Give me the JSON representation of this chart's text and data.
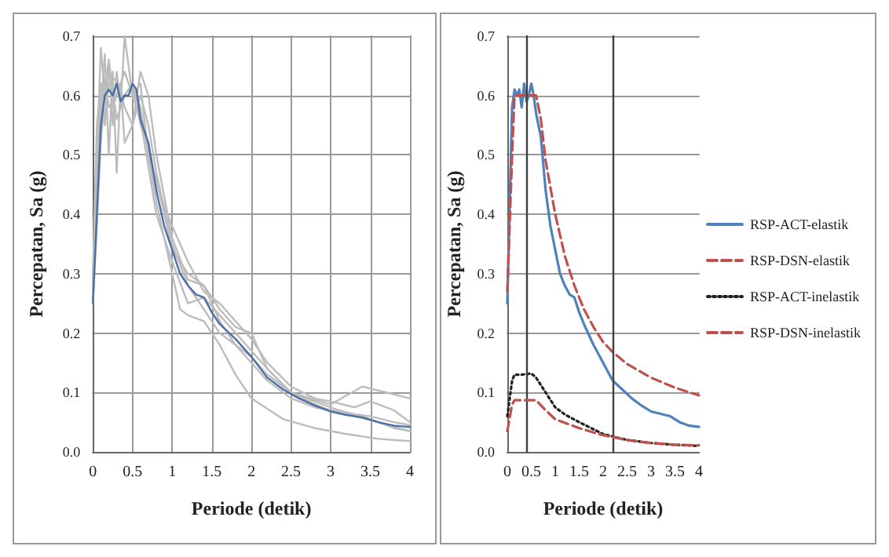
{
  "chart_data": [
    {
      "type": "line",
      "xlabel": "Periode (detik)",
      "ylabel": "Percepatan, Sa (g)",
      "xlim": [
        0,
        4
      ],
      "xticks": [
        0,
        0.5,
        1,
        1.5,
        2,
        2.5,
        3,
        3.5,
        4
      ],
      "ylim": [
        0,
        0.7
      ],
      "yticks": [
        {
          "value": 0,
          "label": "0.0"
        },
        {
          "value": 0.1,
          "label": "0.1"
        },
        {
          "value": 0.2,
          "label": "0.2"
        },
        {
          "value": 0.3,
          "label": "0.3"
        },
        {
          "value": 0.4,
          "label": "0.4"
        },
        {
          "value": 0.5,
          "label": "0.5"
        },
        {
          "value": 0.6,
          "label": "0.6"
        },
        {
          "value": 0.7,
          "label": "0.7"
        }
      ],
      "grid": true,
      "legend": false,
      "marker": "none",
      "line_style": "solid",
      "series": [
        {
          "color": "#bcbcbc",
          "x": [
            0,
            0.05,
            0.1,
            0.15,
            0.2,
            0.25,
            0.3,
            0.35,
            0.4,
            0.5,
            0.6,
            0.7,
            0.8,
            1.0,
            1.1,
            1.2,
            1.4,
            1.6,
            1.8,
            2.0,
            2.4,
            2.8,
            3.2,
            3.6,
            4.0
          ],
          "values": [
            0.27,
            0.5,
            0.68,
            0.6,
            0.66,
            0.55,
            0.64,
            0.58,
            0.7,
            0.6,
            0.62,
            0.5,
            0.42,
            0.3,
            0.24,
            0.23,
            0.22,
            0.18,
            0.13,
            0.09,
            0.055,
            0.04,
            0.03,
            0.022,
            0.018
          ]
        },
        {
          "color": "#bcbcbc",
          "x": [
            0,
            0.05,
            0.1,
            0.15,
            0.2,
            0.25,
            0.3,
            0.35,
            0.4,
            0.5,
            0.6,
            0.7,
            0.8,
            1.0,
            1.2,
            1.4,
            1.6,
            1.8,
            2.0,
            2.2,
            2.5,
            3.0,
            3.4,
            3.7,
            4.0
          ],
          "values": [
            0.26,
            0.45,
            0.58,
            0.67,
            0.5,
            0.64,
            0.47,
            0.62,
            0.52,
            0.55,
            0.64,
            0.6,
            0.5,
            0.36,
            0.29,
            0.28,
            0.24,
            0.21,
            0.2,
            0.14,
            0.1,
            0.08,
            0.11,
            0.1,
            0.09
          ]
        },
        {
          "color": "#bcbcbc",
          "x": [
            0,
            0.05,
            0.1,
            0.15,
            0.2,
            0.25,
            0.3,
            0.4,
            0.5,
            0.6,
            0.7,
            0.8,
            1.0,
            1.2,
            1.4,
            1.6,
            1.8,
            2.0,
            2.2,
            2.5,
            2.8,
            3.2,
            3.5,
            3.8,
            4.0
          ],
          "values": [
            0.3,
            0.55,
            0.62,
            0.55,
            0.65,
            0.58,
            0.6,
            0.6,
            0.62,
            0.58,
            0.5,
            0.46,
            0.34,
            0.3,
            0.28,
            0.22,
            0.18,
            0.15,
            0.12,
            0.09,
            0.075,
            0.065,
            0.06,
            0.05,
            0.045
          ]
        },
        {
          "color": "#bcbcbc",
          "x": [
            0,
            0.05,
            0.1,
            0.15,
            0.2,
            0.3,
            0.4,
            0.5,
            0.6,
            0.7,
            0.8,
            0.9,
            1.0,
            1.2,
            1.4,
            1.6,
            1.8,
            2.0,
            2.2,
            2.5,
            2.8,
            3.1,
            3.4,
            3.7,
            4.0
          ],
          "values": [
            0.28,
            0.42,
            0.57,
            0.63,
            0.58,
            0.6,
            0.64,
            0.6,
            0.56,
            0.48,
            0.4,
            0.36,
            0.32,
            0.25,
            0.26,
            0.23,
            0.2,
            0.17,
            0.14,
            0.1,
            0.085,
            0.07,
            0.06,
            0.045,
            0.035
          ]
        },
        {
          "color": "#bcbcbc",
          "x": [
            0,
            0.05,
            0.1,
            0.15,
            0.2,
            0.3,
            0.4,
            0.5,
            0.6,
            0.7,
            0.8,
            1.0,
            1.2,
            1.4,
            1.6,
            1.8,
            2.0,
            2.2,
            2.5,
            2.8,
            3.0,
            3.3,
            3.5,
            3.8,
            4.0
          ],
          "values": [
            0.25,
            0.38,
            0.52,
            0.6,
            0.66,
            0.56,
            0.6,
            0.62,
            0.55,
            0.52,
            0.45,
            0.38,
            0.32,
            0.27,
            0.25,
            0.22,
            0.19,
            0.15,
            0.11,
            0.09,
            0.085,
            0.075,
            0.085,
            0.07,
            0.05
          ]
        },
        {
          "color": "#bcbcbc",
          "x": [
            0,
            0.05,
            0.1,
            0.15,
            0.2,
            0.3,
            0.4,
            0.5,
            0.6,
            0.7,
            0.8,
            1.0,
            1.2,
            1.4,
            1.6,
            1.8,
            2.0,
            2.2,
            2.5,
            2.8,
            3.0,
            3.3,
            3.6,
            3.8,
            4.0
          ],
          "values": [
            0.29,
            0.48,
            0.6,
            0.56,
            0.62,
            0.63,
            0.58,
            0.55,
            0.6,
            0.55,
            0.47,
            0.35,
            0.28,
            0.24,
            0.2,
            0.18,
            0.16,
            0.13,
            0.1,
            0.08,
            0.07,
            0.06,
            0.05,
            0.04,
            0.035
          ]
        },
        {
          "color": "#4a6fa5",
          "x": [
            0,
            0.05,
            0.1,
            0.15,
            0.2,
            0.25,
            0.3,
            0.35,
            0.4,
            0.45,
            0.5,
            0.55,
            0.6,
            0.7,
            0.8,
            0.9,
            1.0,
            1.1,
            1.2,
            1.3,
            1.4,
            1.5,
            1.6,
            1.8,
            2.0,
            2.2,
            2.4,
            2.6,
            2.8,
            3.0,
            3.2,
            3.4,
            3.6,
            3.8,
            4.0
          ],
          "values": [
            0.25,
            0.4,
            0.55,
            0.6,
            0.61,
            0.6,
            0.62,
            0.59,
            0.6,
            0.6,
            0.62,
            0.61,
            0.56,
            0.52,
            0.44,
            0.38,
            0.34,
            0.3,
            0.28,
            0.265,
            0.26,
            0.235,
            0.215,
            0.19,
            0.16,
            0.125,
            0.105,
            0.09,
            0.078,
            0.068,
            0.062,
            0.058,
            0.05,
            0.044,
            0.042
          ]
        }
      ]
    },
    {
      "type": "line",
      "xlabel": "Periode (detik)",
      "ylabel": "Percepatan, Sa (g)",
      "xlim": [
        0,
        4
      ],
      "xticks": [
        0,
        0.5,
        1,
        1.5,
        2,
        2.5,
        3,
        3.5,
        4
      ],
      "ylim": [
        0,
        0.7
      ],
      "yticks": [
        {
          "value": 0,
          "label": "0.0"
        },
        {
          "value": 0.1,
          "label": "0.1"
        },
        {
          "value": 0.2,
          "label": "0.2"
        },
        {
          "value": 0.3,
          "label": "0.3"
        },
        {
          "value": 0.4,
          "label": "0.4"
        },
        {
          "value": 0.5,
          "label": "0.5"
        },
        {
          "value": 0.6,
          "label": "0.6"
        },
        {
          "value": 0.7,
          "label": "0.7"
        }
      ],
      "grid": "y",
      "legend": "right",
      "marker": "none",
      "ref_lines": [
        {
          "axis": "x",
          "value": 0.4,
          "color": "#404040"
        },
        {
          "axis": "x",
          "value": 2.2,
          "color": "#404040"
        }
      ],
      "series": [
        {
          "name": "RSP-ACT-elastik",
          "color": "#4f81bd",
          "line_style": "solid",
          "x": [
            0,
            0.05,
            0.1,
            0.15,
            0.2,
            0.25,
            0.3,
            0.35,
            0.4,
            0.45,
            0.5,
            0.55,
            0.6,
            0.7,
            0.8,
            0.9,
            1.0,
            1.1,
            1.2,
            1.3,
            1.4,
            1.5,
            1.6,
            1.8,
            2.0,
            2.2,
            2.4,
            2.6,
            2.8,
            3.0,
            3.2,
            3.4,
            3.6,
            3.8,
            4.0
          ],
          "values": [
            0.25,
            0.42,
            0.58,
            0.61,
            0.6,
            0.61,
            0.58,
            0.62,
            0.59,
            0.6,
            0.62,
            0.6,
            0.57,
            0.53,
            0.44,
            0.38,
            0.34,
            0.3,
            0.28,
            0.265,
            0.26,
            0.235,
            0.215,
            0.18,
            0.15,
            0.12,
            0.105,
            0.09,
            0.078,
            0.068,
            0.064,
            0.06,
            0.05,
            0.044,
            0.042
          ]
        },
        {
          "name": "RSP-DSN-elastik",
          "color": "#c0504d",
          "line_style": "dashed",
          "x": [
            0,
            0.1,
            0.15,
            0.6,
            0.7,
            0.8,
            1.0,
            1.2,
            1.4,
            1.6,
            1.8,
            2.0,
            2.2,
            2.5,
            3.0,
            3.5,
            4.0
          ],
          "values": [
            0.27,
            0.5,
            0.6,
            0.6,
            0.56,
            0.49,
            0.4,
            0.33,
            0.28,
            0.24,
            0.21,
            0.185,
            0.168,
            0.148,
            0.125,
            0.108,
            0.095
          ]
        },
        {
          "name": "RSP-ACT-inelastik",
          "color": "#202020",
          "line_style": "dotted",
          "x": [
            0,
            0.1,
            0.15,
            0.3,
            0.5,
            0.6,
            0.8,
            1.0,
            1.2,
            1.5,
            2.0,
            2.5,
            3.0,
            3.5,
            4.0
          ],
          "values": [
            0.06,
            0.12,
            0.13,
            0.13,
            0.132,
            0.125,
            0.1,
            0.075,
            0.063,
            0.05,
            0.03,
            0.02,
            0.015,
            0.012,
            0.01
          ]
        },
        {
          "name": "RSP-DSN-inelastik",
          "color": "#c0504d",
          "line_style": "dashed",
          "x": [
            0,
            0.1,
            0.15,
            0.6,
            0.8,
            1.0,
            1.5,
            2.0,
            2.5,
            3.0,
            3.5,
            4.0
          ],
          "values": [
            0.035,
            0.08,
            0.087,
            0.087,
            0.07,
            0.055,
            0.04,
            0.028,
            0.02,
            0.015,
            0.012,
            0.011
          ]
        }
      ]
    }
  ]
}
